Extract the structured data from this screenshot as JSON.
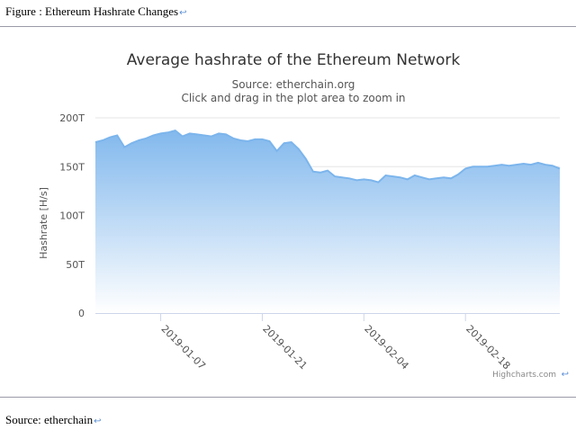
{
  "document": {
    "caption": "Figure : Ethereum Hashrate Changes",
    "caption_mark": "↩",
    "source_note": "Source: etherchain",
    "source_mark": "↩",
    "end_mark": "↩"
  },
  "chart_data": {
    "type": "area",
    "title": "Average hashrate of the Ethereum Network",
    "subtitle": "Source: etherchain.org",
    "subtitle2": "Click and drag in the plot area to zoom in",
    "ylabel": "Hashrate [H/s]",
    "xlabel": "",
    "credit": "Highcharts.com",
    "ylim": [
      0,
      200
    ],
    "y_ticks": [
      {
        "value": 0,
        "label": "0"
      },
      {
        "value": 50,
        "label": "50T"
      },
      {
        "value": 100,
        "label": "100T"
      },
      {
        "value": 150,
        "label": "150T"
      },
      {
        "value": 200,
        "label": "200T"
      }
    ],
    "x_ticks": [
      {
        "value": 7,
        "label": "2019-01-07"
      },
      {
        "value": 21,
        "label": "2019-01-21"
      },
      {
        "value": 35,
        "label": "2019-02-04"
      },
      {
        "value": 49,
        "label": "2019-02-18"
      }
    ],
    "x_range": [
      -2,
      62
    ],
    "grid": true,
    "legend": "none",
    "colors": {
      "line": "#7cb5ec",
      "fill_top": "#7cb5ec",
      "fill_bottom": "#ffffff",
      "grid": "#e6e6e6"
    },
    "x": [
      -2,
      -1,
      0,
      1,
      2,
      3,
      4,
      5,
      6,
      7,
      8,
      9,
      10,
      11,
      12,
      13,
      14,
      15,
      16,
      17,
      18,
      19,
      20,
      21,
      22,
      23,
      24,
      25,
      26,
      27,
      28,
      29,
      30,
      31,
      32,
      33,
      34,
      35,
      36,
      37,
      38,
      39,
      40,
      41,
      42,
      43,
      44,
      45,
      46,
      47,
      48,
      49,
      50,
      51,
      52,
      53,
      54,
      55,
      56,
      57,
      58,
      59,
      60,
      61,
      62
    ],
    "values": [
      175,
      177,
      180,
      182,
      170,
      174,
      177,
      179,
      182,
      184,
      185,
      187,
      181,
      184,
      183,
      182,
      181,
      184,
      183,
      179,
      177,
      176,
      178,
      178,
      176,
      166,
      174,
      175,
      168,
      158,
      145,
      144,
      146,
      140,
      139,
      138,
      136,
      137,
      136,
      134,
      141,
      140,
      139,
      137,
      141,
      139,
      137,
      138,
      139,
      138,
      142,
      148,
      150,
      150,
      150,
      151,
      152,
      151,
      152,
      153,
      152,
      154,
      152,
      151,
      148
    ]
  }
}
